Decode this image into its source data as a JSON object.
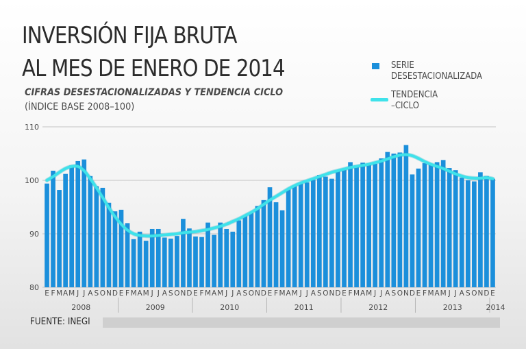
{
  "title_line1": "INVERSIÓN FIJA BRUTA",
  "title_line2": "AL MES DE ENERO DE 2014",
  "subtitle": "CIFRAS DESESTACIONALIZADAS Y TENDENCIA CICLO",
  "subtitle2": "(ÍNDICE BASE 2008–100)",
  "legend": {
    "bar_label_1": "SERIE",
    "bar_label_2": "DESESTACIONALIZADA",
    "trend_label_1": "TENDENCIA",
    "trend_label_2": "–CICLO"
  },
  "source": "FUENTE: INEGI",
  "colors": {
    "bar": "#1b8fdb",
    "trend": "#3fe2ea",
    "grid": "#c4c4c4",
    "text": "#4a4a4a"
  },
  "chart_data": {
    "type": "bar",
    "title": "INVERSIÓN FIJA BRUTA AL MES DE ENERO DE 2014",
    "subtitle": "CIFRAS DESESTACIONALIZADAS Y TENDENCIA CICLO (ÍNDICE BASE 2008–100)",
    "xlabel": "",
    "ylabel": "",
    "ylim": [
      80,
      110
    ],
    "yticks": [
      80,
      90,
      100,
      110
    ],
    "grid": true,
    "legend_position": "top-right",
    "month_letters": [
      "E",
      "F",
      "M",
      "A",
      "M",
      "J",
      "J",
      "A",
      "S",
      "O",
      "N",
      "D"
    ],
    "years": [
      {
        "label": "2008",
        "start": 0
      },
      {
        "label": "2009",
        "start": 12
      },
      {
        "label": "2010",
        "start": 24
      },
      {
        "label": "2011",
        "start": 36
      },
      {
        "label": "2012",
        "start": 48
      },
      {
        "label": "2013",
        "start": 60
      },
      {
        "label": "2014",
        "start": 72
      }
    ],
    "series": [
      {
        "name": "SERIE DESESTACIONALIZADA",
        "kind": "bar",
        "values": [
          99.4,
          101.8,
          98.2,
          101.2,
          102.8,
          103.6,
          103.9,
          100.8,
          98.9,
          98.6,
          95.8,
          94.2,
          94.5,
          92.0,
          89.0,
          90.4,
          88.7,
          90.9,
          90.9,
          89.3,
          89.1,
          89.6,
          92.8,
          91.0,
          89.5,
          89.4,
          92.1,
          89.8,
          92.1,
          90.9,
          90.4,
          92.5,
          93.3,
          93.9,
          95.2,
          96.3,
          98.7,
          95.9,
          94.4,
          98.3,
          98.9,
          99.4,
          99.6,
          100.1,
          101.0,
          100.7,
          100.3,
          101.8,
          102.2,
          103.4,
          102.8,
          103.3,
          102.9,
          103.1,
          104.1,
          105.3,
          105.0,
          105.2,
          106.6,
          101.1,
          102.2,
          103.2,
          103.0,
          103.4,
          103.8,
          102.3,
          101.9,
          100.5,
          100.0,
          99.8,
          101.5,
          100.8,
          100.3
        ]
      },
      {
        "name": "TENDENCIA–CICLO",
        "kind": "line",
        "values": [
          100.0,
          100.7,
          101.5,
          102.2,
          102.6,
          102.6,
          101.8,
          100.3,
          98.6,
          96.8,
          94.9,
          93.2,
          91.8,
          90.7,
          90.0,
          89.7,
          89.6,
          89.6,
          89.7,
          89.8,
          89.9,
          90.0,
          90.2,
          90.3,
          90.4,
          90.6,
          90.8,
          91.1,
          91.4,
          91.8,
          92.3,
          92.8,
          93.4,
          94.0,
          94.7,
          95.5,
          96.3,
          97.0,
          97.7,
          98.4,
          99.0,
          99.5,
          99.9,
          100.3,
          100.7,
          101.1,
          101.5,
          101.8,
          102.1,
          102.4,
          102.6,
          102.8,
          103.0,
          103.3,
          103.6,
          104.0,
          104.4,
          104.7,
          104.8,
          104.6,
          104.1,
          103.5,
          103.0,
          102.6,
          102.2,
          101.7,
          101.2,
          100.8,
          100.5,
          100.4,
          100.4,
          100.5,
          100.3
        ]
      }
    ]
  }
}
